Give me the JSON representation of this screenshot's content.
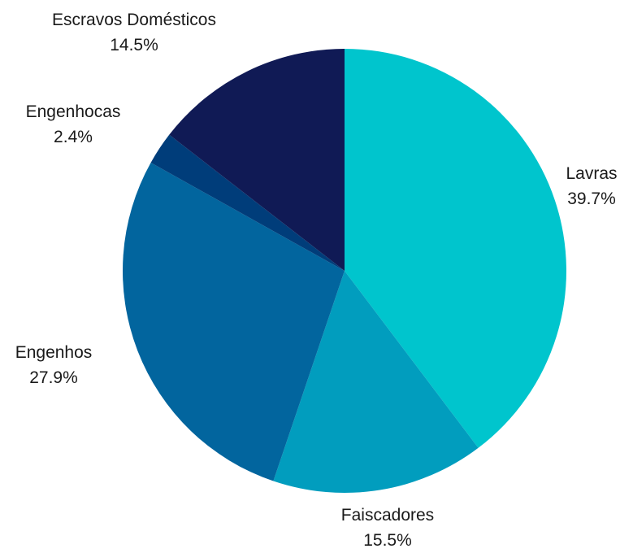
{
  "chart_data": {
    "type": "pie",
    "title": "",
    "start": "top",
    "direction": "clockwise",
    "slices": [
      {
        "label": "Lavras",
        "value": 39.7,
        "value_label": "39.7%",
        "color": "#00c5cd"
      },
      {
        "label": "Faiscadores",
        "value": 15.5,
        "value_label": "15.5%",
        "color": "#019dbe"
      },
      {
        "label": "Engenhos",
        "value": 27.9,
        "value_label": "27.9%",
        "color": "#02659e"
      },
      {
        "label": "Engenhocas",
        "value": 2.4,
        "value_label": "2.4%",
        "color": "#003d7a"
      },
      {
        "label": "Escravos Domésticos",
        "value": 14.5,
        "value_label": "14.5%",
        "color": "#101a55"
      }
    ]
  }
}
